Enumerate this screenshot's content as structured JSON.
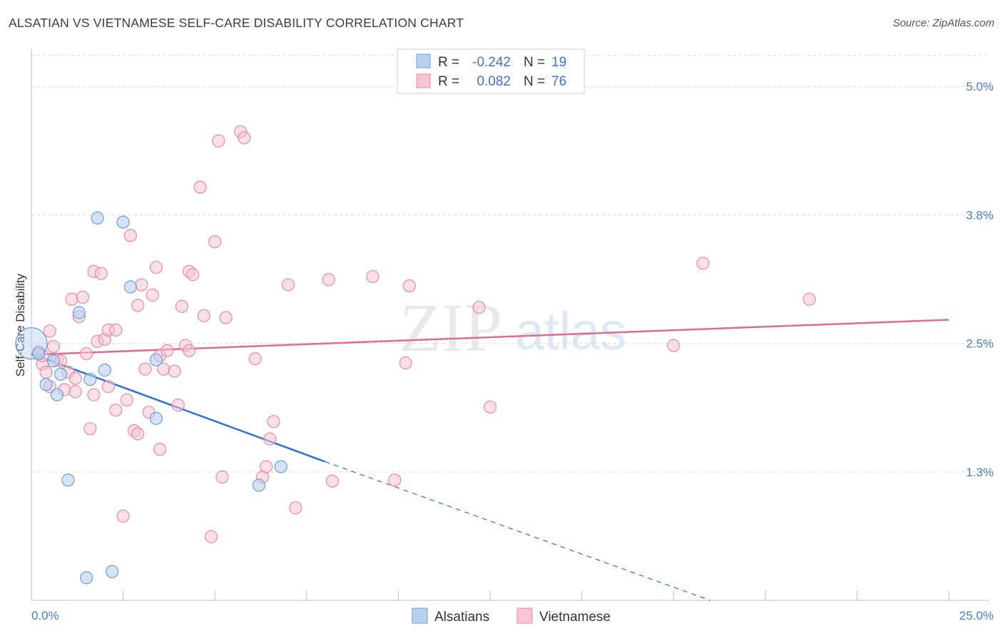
{
  "title": "ALSATIAN VS VIETNAMESE SELF-CARE DISABILITY CORRELATION CHART",
  "source": "Source: ZipAtlas.com",
  "watermark": {
    "zip": "ZIP",
    "atlas": "atlas"
  },
  "colors": {
    "alsatians_fill": "#b8d0f0",
    "alsatians_stroke": "#6f9bd8",
    "alsatians_line": "#2f6fd0",
    "vietnamese_fill": "#f6c4d3",
    "vietnamese_stroke": "#e38aa8",
    "vietnamese_line": "#e06a92",
    "tick_label": "#4a7cc9",
    "grid": "#d9d9d9"
  },
  "legend": {
    "rows": [
      {
        "r_label": "R =",
        "r_value": "-0.242",
        "n_label": "N =",
        "n_value": "19"
      },
      {
        "r_label": "R =",
        "r_value": "0.082",
        "n_label": "N =",
        "n_value": "76"
      }
    ]
  },
  "bottom_legend": [
    "Alsatians",
    "Vietnamese"
  ],
  "chart_data": {
    "type": "scatter",
    "title": "ALSATIAN VS VIETNAMESE SELF-CARE DISABILITY CORRELATION CHART",
    "xlabel": "",
    "ylabel": "Self-Care Disability",
    "xlim": [
      0,
      25
    ],
    "ylim": [
      0,
      5.3
    ],
    "x_ticks": [
      0,
      2.5,
      5,
      7.5,
      10,
      12.5,
      15,
      17.5,
      20,
      22.5,
      25
    ],
    "x_tick_labels": {
      "0": "0.0%",
      "25": "25.0%"
    },
    "y_ticks": [
      1.25,
      2.5,
      3.75,
      5.0
    ],
    "y_tick_labels": [
      "1.3%",
      "2.5%",
      "3.8%",
      "5.0%"
    ],
    "grid": true,
    "legend_position": "top-center",
    "series": [
      {
        "name": "Alsatians",
        "r": -0.242,
        "n": 19,
        "trend": {
          "x_start": 0,
          "y_start": 2.4,
          "x_solid_end": 8.0,
          "y_solid_end": 1.35,
          "x_dash_end": 18.5,
          "y_dash_end": 0.0
        },
        "points": [
          {
            "x": 0.0,
            "y": 2.5
          },
          {
            "x": 0.2,
            "y": 2.4
          },
          {
            "x": 0.4,
            "y": 2.1
          },
          {
            "x": 0.6,
            "y": 2.33
          },
          {
            "x": 0.7,
            "y": 2.0
          },
          {
            "x": 0.8,
            "y": 2.2
          },
          {
            "x": 1.0,
            "y": 1.17
          },
          {
            "x": 1.3,
            "y": 2.8
          },
          {
            "x": 1.5,
            "y": 0.22
          },
          {
            "x": 1.6,
            "y": 2.15
          },
          {
            "x": 1.8,
            "y": 3.72
          },
          {
            "x": 2.0,
            "y": 2.24
          },
          {
            "x": 2.2,
            "y": 0.28
          },
          {
            "x": 2.5,
            "y": 3.68
          },
          {
            "x": 2.7,
            "y": 3.05
          },
          {
            "x": 3.4,
            "y": 2.34
          },
          {
            "x": 3.4,
            "y": 1.77
          },
          {
            "x": 6.2,
            "y": 1.12
          },
          {
            "x": 6.8,
            "y": 1.3
          }
        ]
      },
      {
        "name": "Vietnamese",
        "r": 0.082,
        "n": 76,
        "trend": {
          "x_start": 0,
          "y_start": 2.39,
          "x_end": 25,
          "y_end": 2.73
        },
        "points": [
          {
            "x": 0.2,
            "y": 2.42
          },
          {
            "x": 0.3,
            "y": 2.3
          },
          {
            "x": 0.3,
            "y": 2.38
          },
          {
            "x": 0.4,
            "y": 2.22
          },
          {
            "x": 0.5,
            "y": 2.08
          },
          {
            "x": 0.5,
            "y": 2.62
          },
          {
            "x": 0.6,
            "y": 2.47
          },
          {
            "x": 0.7,
            "y": 2.34
          },
          {
            "x": 0.8,
            "y": 2.33
          },
          {
            "x": 0.9,
            "y": 2.05
          },
          {
            "x": 1.0,
            "y": 2.22
          },
          {
            "x": 1.1,
            "y": 2.93
          },
          {
            "x": 1.2,
            "y": 2.16
          },
          {
            "x": 1.2,
            "y": 2.03
          },
          {
            "x": 1.3,
            "y": 2.76
          },
          {
            "x": 1.4,
            "y": 2.95
          },
          {
            "x": 1.5,
            "y": 2.4
          },
          {
            "x": 1.6,
            "y": 1.67
          },
          {
            "x": 1.7,
            "y": 2.0
          },
          {
            "x": 1.7,
            "y": 3.2
          },
          {
            "x": 1.8,
            "y": 2.52
          },
          {
            "x": 1.9,
            "y": 3.18
          },
          {
            "x": 2.0,
            "y": 2.54
          },
          {
            "x": 2.1,
            "y": 2.63
          },
          {
            "x": 2.1,
            "y": 2.08
          },
          {
            "x": 2.3,
            "y": 1.85
          },
          {
            "x": 2.3,
            "y": 2.63
          },
          {
            "x": 2.5,
            "y": 0.82
          },
          {
            "x": 2.6,
            "y": 1.95
          },
          {
            "x": 2.7,
            "y": 3.55
          },
          {
            "x": 2.8,
            "y": 1.65
          },
          {
            "x": 2.9,
            "y": 2.87
          },
          {
            "x": 2.9,
            "y": 1.62
          },
          {
            "x": 3.0,
            "y": 3.07
          },
          {
            "x": 3.1,
            "y": 2.25
          },
          {
            "x": 3.2,
            "y": 1.83
          },
          {
            "x": 3.3,
            "y": 2.97
          },
          {
            "x": 3.4,
            "y": 3.24
          },
          {
            "x": 3.5,
            "y": 1.47
          },
          {
            "x": 3.5,
            "y": 2.38
          },
          {
            "x": 3.6,
            "y": 2.25
          },
          {
            "x": 3.7,
            "y": 2.43
          },
          {
            "x": 3.9,
            "y": 2.23
          },
          {
            "x": 4.0,
            "y": 1.9
          },
          {
            "x": 4.1,
            "y": 2.86
          },
          {
            "x": 4.2,
            "y": 2.48
          },
          {
            "x": 4.3,
            "y": 2.43
          },
          {
            "x": 4.3,
            "y": 3.2
          },
          {
            "x": 4.4,
            "y": 3.17
          },
          {
            "x": 4.6,
            "y": 4.02
          },
          {
            "x": 4.7,
            "y": 2.77
          },
          {
            "x": 4.9,
            "y": 0.62
          },
          {
            "x": 5.0,
            "y": 3.49
          },
          {
            "x": 5.1,
            "y": 4.47
          },
          {
            "x": 5.2,
            "y": 1.2
          },
          {
            "x": 5.3,
            "y": 2.75
          },
          {
            "x": 5.7,
            "y": 4.56
          },
          {
            "x": 5.8,
            "y": 4.5
          },
          {
            "x": 6.1,
            "y": 2.35
          },
          {
            "x": 6.3,
            "y": 1.2
          },
          {
            "x": 6.4,
            "y": 1.3
          },
          {
            "x": 6.5,
            "y": 1.57
          },
          {
            "x": 6.6,
            "y": 1.74
          },
          {
            "x": 7.0,
            "y": 3.07
          },
          {
            "x": 7.2,
            "y": 0.9
          },
          {
            "x": 8.1,
            "y": 3.12
          },
          {
            "x": 8.2,
            "y": 1.16
          },
          {
            "x": 9.3,
            "y": 3.15
          },
          {
            "x": 9.9,
            "y": 1.17
          },
          {
            "x": 10.2,
            "y": 2.31
          },
          {
            "x": 10.3,
            "y": 3.06
          },
          {
            "x": 12.2,
            "y": 2.85
          },
          {
            "x": 12.5,
            "y": 1.88
          },
          {
            "x": 17.5,
            "y": 2.48
          },
          {
            "x": 18.3,
            "y": 3.28
          },
          {
            "x": 21.2,
            "y": 2.93
          }
        ]
      }
    ]
  }
}
